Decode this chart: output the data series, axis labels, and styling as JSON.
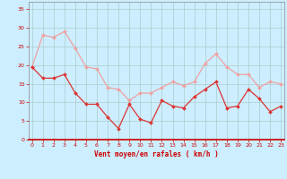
{
  "x": [
    0,
    1,
    2,
    3,
    4,
    5,
    6,
    7,
    8,
    9,
    10,
    11,
    12,
    13,
    14,
    15,
    16,
    17,
    18,
    19,
    20,
    21,
    22,
    23
  ],
  "vent_moyen": [
    19.5,
    16.5,
    16.5,
    17.5,
    12.5,
    9.5,
    9.5,
    6.0,
    3.0,
    9.5,
    5.5,
    4.5,
    10.5,
    9.0,
    8.5,
    11.5,
    13.5,
    15.5,
    8.5,
    9.0,
    13.5,
    11.0,
    7.5,
    9.0
  ],
  "rafales": [
    19.5,
    28.0,
    27.5,
    29.0,
    24.5,
    19.5,
    19.0,
    14.0,
    13.5,
    10.5,
    12.5,
    12.5,
    14.0,
    15.5,
    14.5,
    15.5,
    20.5,
    23.0,
    19.5,
    17.5,
    17.5,
    14.0,
    15.5,
    15.0
  ],
  "line_color_moyen": "#dd3333",
  "line_color_rafales": "#f0a0a0",
  "bg_color": "#cceeff",
  "grid_color": "#aacccc",
  "xlabel": "Vent moyen/en rafales ( km/h )",
  "xlabel_color": "#cc0000",
  "tick_color": "#cc0000",
  "spine_color": "#888888",
  "yticks": [
    0,
    5,
    10,
    15,
    20,
    25,
    30,
    35
  ],
  "xticks": [
    0,
    1,
    2,
    3,
    4,
    5,
    6,
    7,
    8,
    9,
    10,
    11,
    12,
    13,
    14,
    15,
    16,
    17,
    18,
    19,
    20,
    21,
    22,
    23
  ],
  "ylim": [
    0,
    37
  ],
  "xlim": [
    -0.3,
    23.3
  ]
}
